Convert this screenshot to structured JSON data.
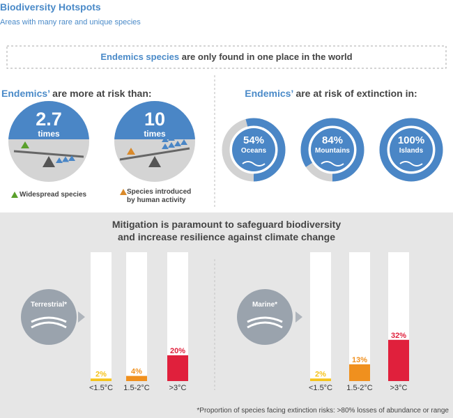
{
  "header": {
    "title": "Biodiversity Hotspots",
    "subtitle": "Areas with many rare and unique species"
  },
  "banner": {
    "bold": "Endemics species",
    "rest": "are only found in one place in the world"
  },
  "risk_than": {
    "title_bold": "Endemics’",
    "title_rest": "are more at risk than:",
    "items": [
      {
        "value": 2.7,
        "unit": "times",
        "label": "Widespread species",
        "color": "#5aa02c"
      },
      {
        "value": 10,
        "unit": "times",
        "label": "Species introduced by human activity",
        "color": "#d9892a"
      }
    ]
  },
  "extinction": {
    "title_bold": "Endemics’",
    "title_rest": "are at risk of extinction in:",
    "items": [
      {
        "value": 54,
        "value_label": "54%",
        "label": "Oceans"
      },
      {
        "value": 84,
        "value_label": "84%",
        "label": "Mountains"
      },
      {
        "value": 100,
        "value_label": "100%",
        "label": "Islands"
      }
    ]
  },
  "mitigation": {
    "title": "Mitigation is paramount to safeguard biodiversity and increase resilience against climate change",
    "ylim": [
      0,
      100
    ],
    "colors": [
      "#f5c31c",
      "#f0901e",
      "#e0203c"
    ],
    "groups": [
      {
        "name": "Terrestrial*",
        "categories": [
          "<1.5°C",
          "1.5-2°C",
          ">3°C"
        ],
        "values": [
          2,
          4,
          20
        ],
        "value_labels": [
          "2%",
          "4%",
          "20%"
        ]
      },
      {
        "name": "Marine*",
        "categories": [
          "<1.5°C",
          "1.5-2°C",
          ">3°C"
        ],
        "values": [
          2,
          13,
          32
        ],
        "value_labels": [
          "2%",
          "13%",
          "32%"
        ]
      }
    ]
  },
  "footnote": "*Proportion of species facing extinction risks: >80% losses of abundance or range"
}
